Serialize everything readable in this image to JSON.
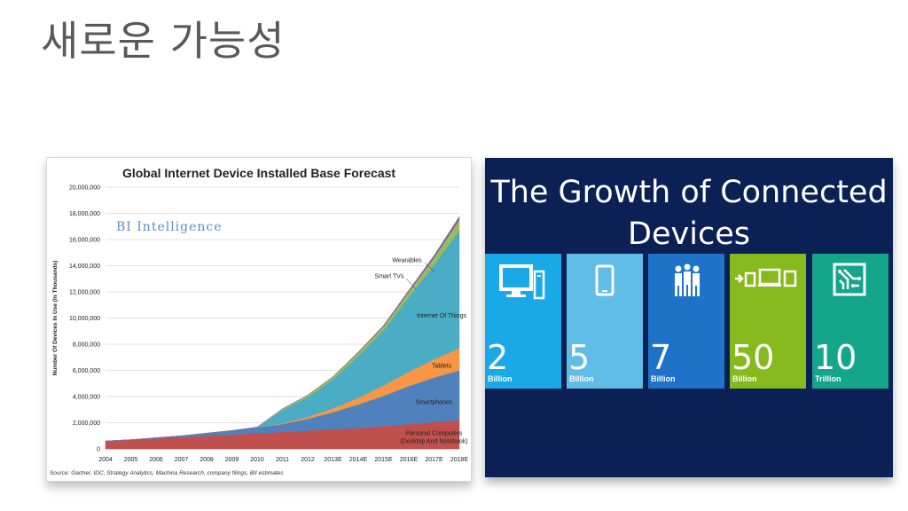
{
  "slide": {
    "title": "새로운 가능성"
  },
  "chart_data": {
    "type": "area",
    "stacked": true,
    "title": "Global Internet Device Installed Base Forecast",
    "watermark": "BI Intelligence",
    "ylabel": "Number Of Devices In Use (In Thousands)",
    "xlabel": "",
    "ylim": [
      0,
      20000000
    ],
    "yticks": [
      0,
      2000000,
      4000000,
      6000000,
      8000000,
      10000000,
      12000000,
      14000000,
      16000000,
      18000000,
      20000000
    ],
    "ytick_labels": [
      "0",
      "2,000,000",
      "4,000,000",
      "6,000,000",
      "8,000,000",
      "10,000,000",
      "12,000,000",
      "14,000,000",
      "16,000,000",
      "18,000,000",
      "20,000,000"
    ],
    "categories": [
      "2004",
      "2005",
      "2006",
      "2007",
      "2008",
      "2009",
      "2010",
      "2011",
      "2012",
      "2013E",
      "2014E",
      "2015E",
      "2016E",
      "2017E",
      "2018E"
    ],
    "grid": true,
    "series": [
      {
        "name": "Personal Computers (Desktop And Notebook)",
        "label_lines": [
          "Personal Computers",
          "(Desktop And Notebook)"
        ],
        "color": "#c0504d",
        "values": [
          600000,
          700000,
          800000,
          900000,
          1000000,
          1100000,
          1200000,
          1300000,
          1400000,
          1500000,
          1600000,
          1750000,
          1900000,
          2050000,
          2200000
        ]
      },
      {
        "name": "Smartphones",
        "color": "#4f81bd",
        "values": [
          0,
          0,
          50000,
          100000,
          200000,
          300000,
          450000,
          600000,
          900000,
          1300000,
          1800000,
          2300000,
          2900000,
          3400000,
          3800000
        ]
      },
      {
        "name": "Tablets",
        "color": "#f79646",
        "values": [
          0,
          0,
          0,
          0,
          0,
          0,
          10000,
          60000,
          150000,
          300000,
          500000,
          800000,
          1100000,
          1400000,
          1700000
        ]
      },
      {
        "name": "Internet Of Things",
        "color": "#4bacc6",
        "values": [
          0,
          0,
          0,
          0,
          0,
          0,
          0,
          1000000,
          1500000,
          2200000,
          3200000,
          4200000,
          5700000,
          7200000,
          9000000
        ]
      },
      {
        "name": "Smart TVs",
        "color": "#9bbb59",
        "values": [
          0,
          0,
          0,
          0,
          0,
          0,
          0,
          100000,
          150000,
          200000,
          250000,
          300000,
          400000,
          550000,
          800000
        ]
      },
      {
        "name": "Wearables",
        "color": "#8064a2",
        "values": [
          0,
          0,
          0,
          0,
          0,
          0,
          0,
          0,
          0,
          20000,
          50000,
          80000,
          120000,
          180000,
          250000
        ]
      }
    ],
    "source": "Source: Gartner, IDC, Strategy Analytics, Machina Research, company filings, BII estimates"
  },
  "panel": {
    "title_line1": "The Growth of Connected",
    "title_line2": "Devices",
    "tiles": [
      {
        "icon": "computer-icon",
        "value": "2",
        "unit": "Billion",
        "color": "#18a9e6"
      },
      {
        "icon": "smartphone-icon",
        "value": "5",
        "unit": "Billion",
        "color": "#5fbde8"
      },
      {
        "icon": "people-icon",
        "value": "7",
        "unit": "Billion",
        "color": "#1e73c8"
      },
      {
        "icon": "devices-icon",
        "value": "50",
        "unit": "Billion",
        "color": "#86b91c"
      },
      {
        "icon": "chip-icon",
        "value": "10",
        "unit": "Trillion",
        "color": "#13a68b"
      }
    ]
  }
}
